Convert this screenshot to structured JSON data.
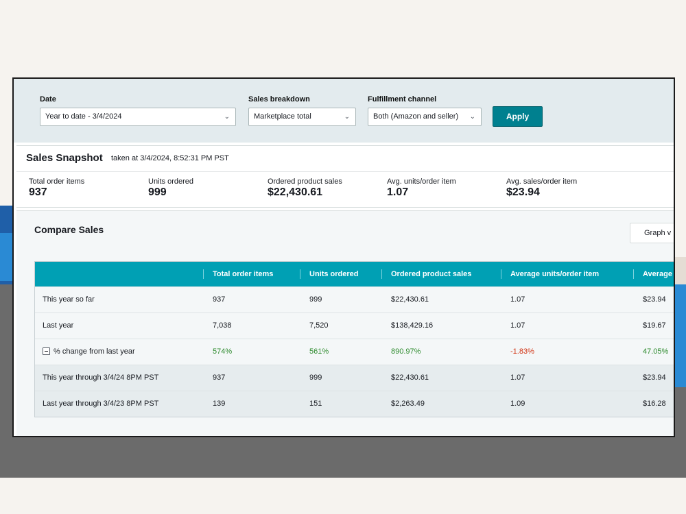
{
  "filters": {
    "date": {
      "label": "Date",
      "value": "Year to date - 3/4/2024"
    },
    "sales_breakdown": {
      "label": "Sales breakdown",
      "value": "Marketplace total"
    },
    "fulfillment": {
      "label": "Fulfillment channel",
      "value": "Both (Amazon and seller)"
    },
    "apply_label": "Apply"
  },
  "snapshot": {
    "title": "Sales Snapshot",
    "subtitle": "taken at 3/4/2024, 8:52:31 PM PST",
    "metrics": [
      {
        "label": "Total order items",
        "value": "937"
      },
      {
        "label": "Units ordered",
        "value": "999"
      },
      {
        "label": "Ordered product sales",
        "value": "$22,430.61"
      },
      {
        "label": "Avg. units/order item",
        "value": "1.07"
      },
      {
        "label": "Avg. sales/order item",
        "value": "$23.94"
      }
    ]
  },
  "compare": {
    "title": "Compare Sales",
    "graph_button": "Graph v",
    "columns": [
      "",
      "Total order items",
      "Units ordered",
      "Ordered product sales",
      "Average units/order item",
      "Average"
    ],
    "rows": [
      {
        "label": "This year so far",
        "cells": [
          "937",
          "999",
          "$22,430.61",
          "1.07",
          "$23.94"
        ]
      },
      {
        "label": "Last year",
        "cells": [
          "7,038",
          "7,520",
          "$138,429.16",
          "1.07",
          "$19.67"
        ]
      },
      {
        "label": "% change from last year",
        "cells": [
          "574%",
          "561%",
          "890.97%",
          "-1.83%",
          "47.05%"
        ]
      },
      {
        "label": "This year through 3/4/24 8PM PST",
        "cells": [
          "937",
          "999",
          "$22,430.61",
          "1.07",
          "$23.94"
        ]
      },
      {
        "label": "Last year through 3/4/23 8PM PST",
        "cells": [
          "139",
          "151",
          "$2,263.49",
          "1.09",
          "$16.28"
        ]
      }
    ]
  },
  "colors": {
    "accent": "#00808f",
    "table_header": "#00a0b4",
    "positive": "#2e8b2e",
    "negative": "#d13212"
  },
  "icons": [
    "chevron-down-icon",
    "minus-icon"
  ]
}
